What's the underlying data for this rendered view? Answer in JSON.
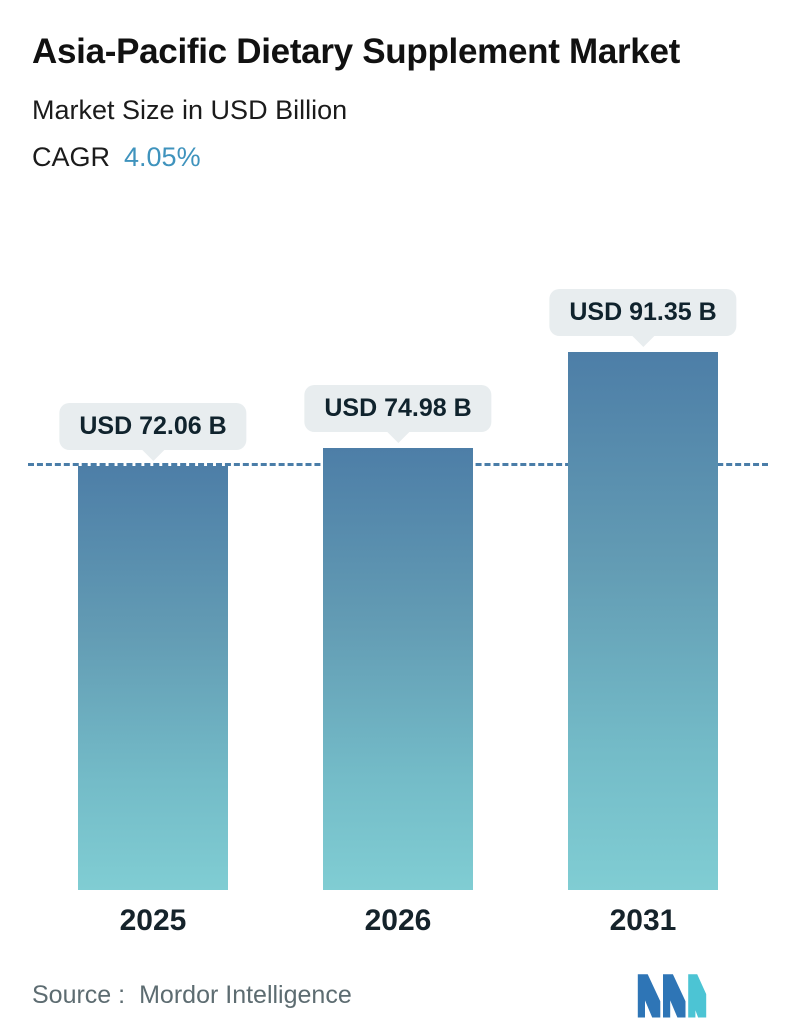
{
  "header": {
    "title": "Asia-Pacific Dietary Supplement Market",
    "subtitle": "Market Size in USD Billion",
    "cagr_label": "CAGR",
    "cagr_value": "4.05%"
  },
  "chart_data": {
    "type": "bar",
    "title": "Asia-Pacific Dietary Supplement Market",
    "subtitle": "Market Size in USD Billion",
    "cagr": "4.05%",
    "categories": [
      "2025",
      "2026",
      "2031"
    ],
    "values": [
      72.06,
      74.98,
      91.35
    ],
    "value_labels": [
      "USD 72.06 B",
      "USD 74.98 B",
      "USD 91.35 B"
    ],
    "ylim": [
      0,
      91.35
    ],
    "reference_line_value": 72.06,
    "grid": false,
    "legend": false,
    "bar_gradient_top": "#4d7ea7",
    "bar_gradient_bottom": "#80cdd3",
    "reference_line_color": "#4a7da8",
    "accent_color": "#3f93bd",
    "badge_background": "#e8edef"
  },
  "footer": {
    "source_label": "Source :",
    "source_value": "Mordor Intelligence",
    "logo_colors": {
      "blue": "#2e75b6",
      "teal": "#4cc4d4"
    }
  }
}
